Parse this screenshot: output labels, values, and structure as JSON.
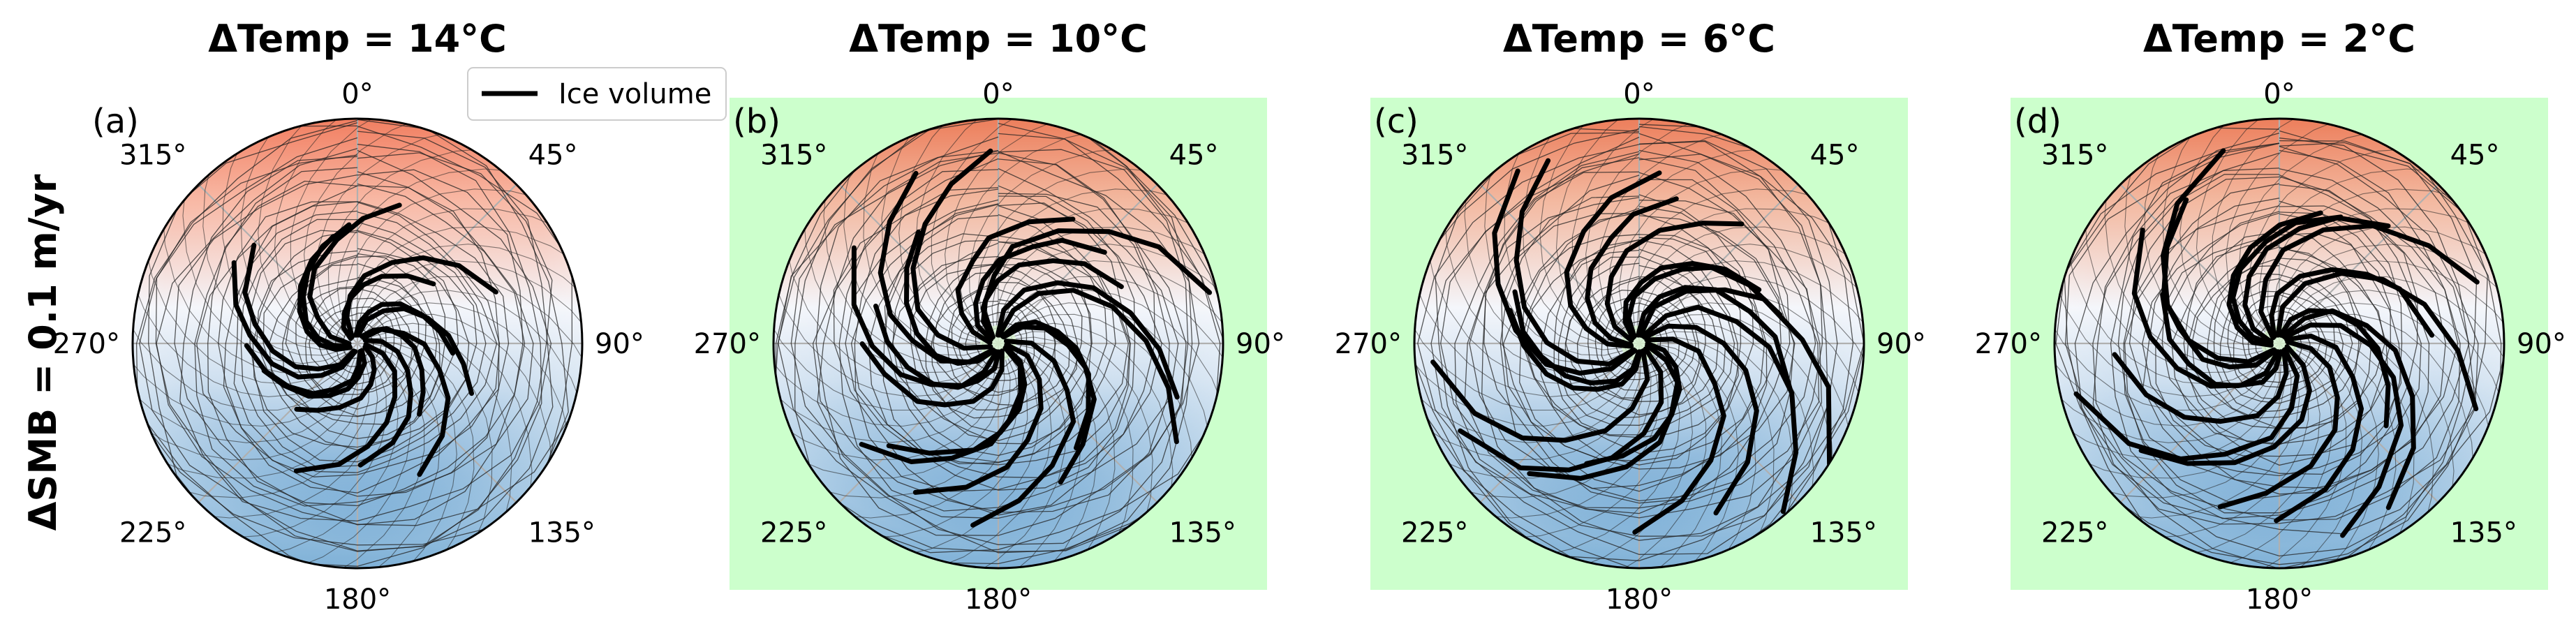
{
  "figure": {
    "ylabel": "ΔSMB = 0.1 m/yr",
    "legend_label": "Ice volume"
  },
  "chart_data": [
    {
      "type": "polar",
      "panel_label": "(a)",
      "title": "ΔTemp = 14°C",
      "angle_ticks": [
        "0°",
        "45°",
        "90°",
        "135°",
        "180°",
        "225°",
        "270°",
        "315°"
      ],
      "theta_zero": "top",
      "theta_direction": "clockwise",
      "background_highlight": false,
      "series": [
        {
          "name": "Ice volume",
          "spiral_count": 16,
          "twist": 0.85,
          "spread": 0.62
        }
      ]
    },
    {
      "type": "polar",
      "panel_label": "(b)",
      "title": "ΔTemp = 10°C",
      "angle_ticks": [
        "0°",
        "45°",
        "90°",
        "135°",
        "180°",
        "225°",
        "270°",
        "315°"
      ],
      "theta_zero": "top",
      "theta_direction": "clockwise",
      "background_highlight": true,
      "highlight_color": "#ccffcc",
      "series": [
        {
          "name": "Ice volume",
          "spiral_count": 18,
          "twist": 0.9,
          "spread": 0.95
        }
      ]
    },
    {
      "type": "polar",
      "panel_label": "(c)",
      "title": "ΔTemp = 6°C",
      "angle_ticks": [
        "0°",
        "45°",
        "90°",
        "135°",
        "180°",
        "225°",
        "270°",
        "315°"
      ],
      "theta_zero": "top",
      "theta_direction": "clockwise",
      "background_highlight": true,
      "highlight_color": "#ccffcc",
      "series": [
        {
          "name": "Ice volume",
          "spiral_count": 18,
          "twist": 0.9,
          "spread": 0.97
        }
      ]
    },
    {
      "type": "polar",
      "panel_label": "(d)",
      "title": "ΔTemp = 2°C",
      "angle_ticks": [
        "0°",
        "45°",
        "90°",
        "135°",
        "180°",
        "225°",
        "270°",
        "315°"
      ],
      "theta_zero": "top",
      "theta_direction": "clockwise",
      "background_highlight": true,
      "highlight_color": "#ccffcc",
      "series": [
        {
          "name": "Ice volume",
          "spiral_count": 18,
          "twist": 0.95,
          "spread": 0.9
        }
      ]
    }
  ],
  "colors": {
    "warm": "#f0704f",
    "cold": "#3a87c2",
    "mid": "#f4f6fb",
    "line": "#000000",
    "grid": "#b0b0b0",
    "highlight": "#ccffcc"
  }
}
